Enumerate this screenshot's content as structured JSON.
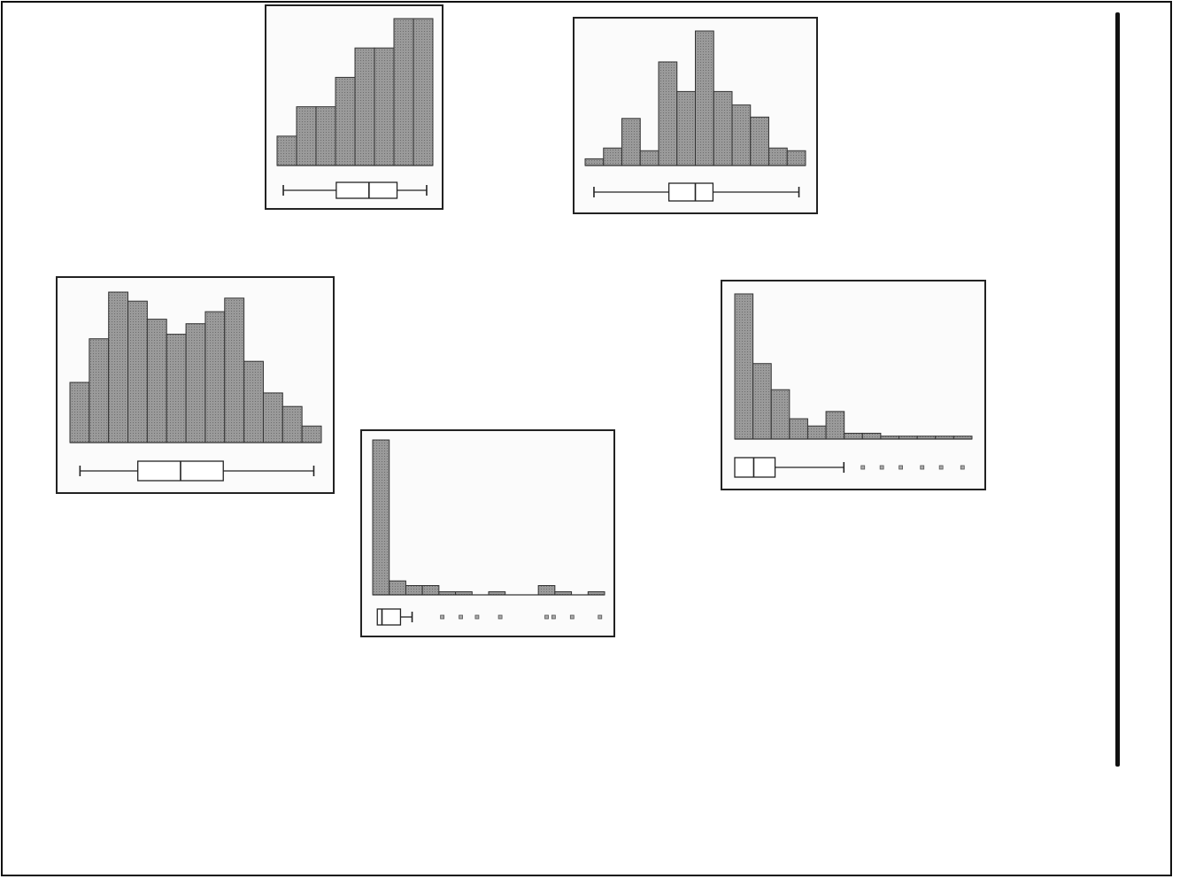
{
  "chart_data": [
    {
      "type": "bar",
      "subtype": "histogram-with-boxplot",
      "bar_color": "#9a9a9a",
      "values": [
        20,
        40,
        40,
        60,
        80,
        80,
        100,
        100
      ],
      "ylim": [
        0,
        100
      ],
      "boxplot": {
        "min": 0.04,
        "q1": 0.38,
        "median": 0.59,
        "q3": 0.77,
        "max": 0.96,
        "outliers": []
      }
    },
    {
      "type": "bar",
      "subtype": "histogram-with-boxplot",
      "bar_color": "#9a9a9a",
      "values": [
        5,
        13,
        35,
        11,
        77,
        55,
        100,
        55,
        45,
        36,
        13,
        11
      ],
      "ylim": [
        0,
        100
      ],
      "boxplot": {
        "min": 0.04,
        "q1": 0.38,
        "median": 0.5,
        "q3": 0.58,
        "max": 0.97,
        "outliers": []
      }
    },
    {
      "type": "bar",
      "subtype": "histogram-with-boxplot",
      "bar_color": "#9a9a9a",
      "values": [
        40,
        69,
        100,
        94,
        82,
        72,
        79,
        87,
        96,
        54,
        33,
        24,
        11
      ],
      "ylim": [
        0,
        100
      ],
      "boxplot": {
        "min": 0.04,
        "q1": 0.27,
        "median": 0.44,
        "q3": 0.61,
        "max": 0.97,
        "outliers": []
      }
    },
    {
      "type": "bar",
      "subtype": "histogram-with-boxplot",
      "bar_color": "#9a9a9a",
      "values": [
        100,
        9,
        6,
        6,
        2,
        2,
        0,
        2,
        0,
        0,
        6,
        2,
        0,
        2
      ],
      "ylim": [
        0,
        100
      ],
      "boxplot": {
        "min": 0.02,
        "q1": 0.02,
        "median": 0.04,
        "q3": 0.12,
        "max": 0.17,
        "outliers": [
          0.3,
          0.38,
          0.45,
          0.55,
          0.75,
          0.78,
          0.86,
          0.98
        ]
      }
    },
    {
      "type": "bar",
      "subtype": "histogram-with-boxplot",
      "bar_color": "#9a9a9a",
      "values": [
        100,
        52,
        34,
        14,
        9,
        19,
        4,
        4,
        2,
        2,
        2,
        2,
        2
      ],
      "ylim": [
        0,
        100
      ],
      "boxplot": {
        "min": 0.0,
        "q1": 0.0,
        "median": 0.08,
        "q3": 0.17,
        "max": 0.46,
        "outliers": [
          0.54,
          0.62,
          0.7,
          0.79,
          0.87,
          0.96
        ]
      }
    }
  ]
}
